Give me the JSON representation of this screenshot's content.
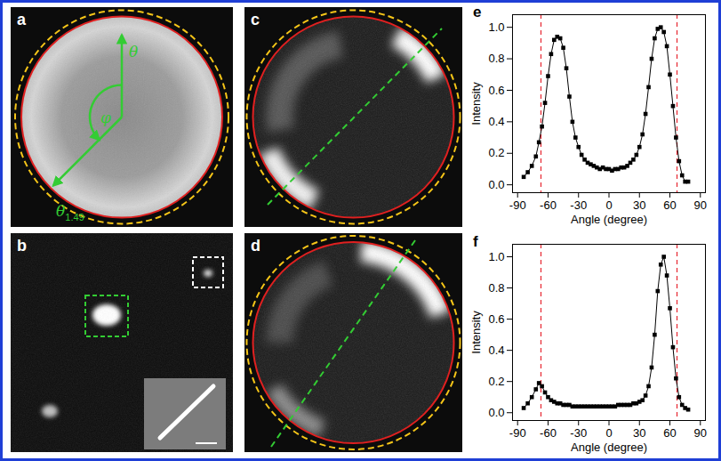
{
  "image_panels": [
    {
      "label": "a",
      "annotations": [
        {
          "text": "θ"
        },
        {
          "text": "φ"
        },
        {
          "text": "θ",
          "subscript": "1.49"
        }
      ]
    },
    {
      "label": "b"
    },
    {
      "label": "c"
    },
    {
      "label": "d"
    }
  ],
  "chart_data": [
    {
      "label": "e",
      "type": "line",
      "marker": "square",
      "line_style": "solid",
      "color": "#000000",
      "x_label": "Angle (degree)",
      "y_label": "Intensity",
      "x": [
        -84,
        -80,
        -76,
        -72,
        -69,
        -66,
        -63,
        -60,
        -57,
        -54,
        -51,
        -48,
        -45,
        -42,
        -39,
        -36,
        -33,
        -30,
        -27,
        -24,
        -21,
        -18,
        -15,
        -12,
        -9,
        -6,
        -3,
        0,
        3,
        6,
        9,
        12,
        15,
        18,
        21,
        24,
        27,
        30,
        33,
        36,
        39,
        42,
        45,
        48,
        51,
        54,
        57,
        60,
        63,
        66,
        69,
        72,
        75,
        78
      ],
      "values": [
        0.05,
        0.08,
        0.12,
        0.18,
        0.27,
        0.37,
        0.52,
        0.69,
        0.83,
        0.92,
        0.94,
        0.93,
        0.87,
        0.74,
        0.56,
        0.4,
        0.3,
        0.24,
        0.19,
        0.16,
        0.14,
        0.13,
        0.12,
        0.11,
        0.1,
        0.11,
        0.1,
        0.1,
        0.09,
        0.1,
        0.1,
        0.11,
        0.11,
        0.12,
        0.14,
        0.16,
        0.19,
        0.24,
        0.32,
        0.45,
        0.62,
        0.8,
        0.93,
        0.99,
        1.0,
        0.97,
        0.88,
        0.7,
        0.5,
        0.3,
        0.15,
        0.06,
        0.02,
        0.02
      ],
      "reference_lines": {
        "x": [
          -67,
          67
        ],
        "color": "#e8303a",
        "line_style": "dashed"
      },
      "xlim": [
        -95,
        95
      ],
      "xticks": [
        -90,
        -60,
        -30,
        0,
        30,
        60,
        90
      ],
      "ylim": [
        -0.05,
        1.08
      ],
      "yticks": [
        {
          "value": 0,
          "label": "0.0"
        },
        0.2,
        0.4,
        0.6,
        0.8,
        {
          "value": 1,
          "label": "1.0"
        }
      ]
    },
    {
      "label": "f",
      "type": "line",
      "marker": "square",
      "line_style": "solid",
      "color": "#000000",
      "x_label": "Angle (degree)",
      "y_label": "Intensity",
      "x": [
        -84,
        -80,
        -76,
        -72,
        -69,
        -66,
        -63,
        -60,
        -57,
        -54,
        -51,
        -48,
        -45,
        -42,
        -39,
        -36,
        -33,
        -30,
        -27,
        -24,
        -21,
        -18,
        -15,
        -12,
        -9,
        -6,
        -3,
        0,
        3,
        6,
        9,
        12,
        15,
        18,
        21,
        24,
        27,
        30,
        33,
        36,
        39,
        42,
        45,
        48,
        51,
        54,
        57,
        60,
        63,
        66,
        69,
        72,
        75,
        78
      ],
      "values": [
        0.03,
        0.06,
        0.1,
        0.15,
        0.19,
        0.17,
        0.13,
        0.1,
        0.08,
        0.07,
        0.06,
        0.06,
        0.05,
        0.05,
        0.05,
        0.04,
        0.04,
        0.04,
        0.04,
        0.04,
        0.04,
        0.04,
        0.04,
        0.04,
        0.04,
        0.04,
        0.04,
        0.04,
        0.04,
        0.04,
        0.05,
        0.05,
        0.05,
        0.05,
        0.05,
        0.06,
        0.06,
        0.07,
        0.08,
        0.11,
        0.17,
        0.29,
        0.5,
        0.78,
        0.95,
        1.0,
        0.88,
        0.67,
        0.42,
        0.22,
        0.1,
        0.05,
        0.03,
        0.02
      ],
      "reference_lines": {
        "x": [
          -67,
          67
        ],
        "color": "#e8303a",
        "line_style": "dashed"
      },
      "xlim": [
        -95,
        95
      ],
      "xticks": [
        -90,
        -60,
        -30,
        0,
        30,
        60,
        90
      ],
      "ylim": [
        -0.05,
        1.08
      ],
      "yticks": [
        {
          "value": 0,
          "label": "0.0"
        },
        0.2,
        0.4,
        0.6,
        0.8,
        {
          "value": 1,
          "label": "1.0"
        }
      ]
    }
  ]
}
